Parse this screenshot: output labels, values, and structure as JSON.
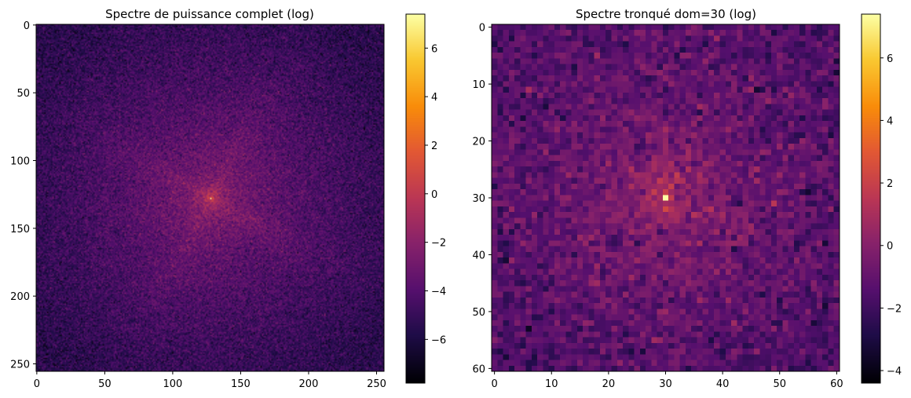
{
  "chart_data": [
    {
      "type": "heatmap",
      "title": "Spectre de puissance complet (log)",
      "xlabel": "",
      "ylabel": "",
      "grid_size": 256,
      "center": [
        128,
        128
      ],
      "xlim": [
        0,
        255
      ],
      "ylim": [
        255,
        0
      ],
      "x_ticks": [
        0,
        50,
        100,
        150,
        200,
        250
      ],
      "x_tick_labels": [
        "0",
        "50",
        "100",
        "150",
        "200",
        "250"
      ],
      "y_ticks": [
        0,
        50,
        100,
        150,
        200,
        250
      ],
      "y_tick_labels": [
        "0",
        "50",
        "100",
        "150",
        "200",
        "250"
      ],
      "colormap": "inferno",
      "value_range": [
        -7.8,
        7.4
      ],
      "colorbar_ticks": [
        6,
        4,
        2,
        0,
        -2,
        -4,
        -6
      ],
      "colorbar_labels": [
        "6",
        "4",
        "2",
        "0",
        "−2",
        "−4",
        "−6"
      ],
      "peak_value": 7.4,
      "typical_center_value": -1.5,
      "typical_edge_value": -5.5
    },
    {
      "type": "heatmap",
      "title": "Spectre tronqué dom=30 (log)",
      "xlabel": "",
      "ylabel": "",
      "grid_size": 61,
      "center": [
        30,
        30
      ],
      "xlim": [
        0,
        60
      ],
      "ylim": [
        60,
        0
      ],
      "x_ticks": [
        0,
        10,
        20,
        30,
        40,
        50,
        60
      ],
      "x_tick_labels": [
        "0",
        "10",
        "20",
        "30",
        "40",
        "50",
        "60"
      ],
      "y_ticks": [
        0,
        10,
        20,
        30,
        40,
        50,
        60
      ],
      "y_tick_labels": [
        "0",
        "10",
        "20",
        "30",
        "40",
        "50",
        "60"
      ],
      "colormap": "inferno",
      "value_range": [
        -4.4,
        7.4
      ],
      "colorbar_ticks": [
        6,
        4,
        2,
        0,
        -2,
        -4
      ],
      "colorbar_labels": [
        "6",
        "4",
        "2",
        "0",
        "−2",
        "−4"
      ],
      "peak_value": 7.4,
      "typical_center_value": 0.5,
      "typical_edge_value": -1.6
    }
  ]
}
